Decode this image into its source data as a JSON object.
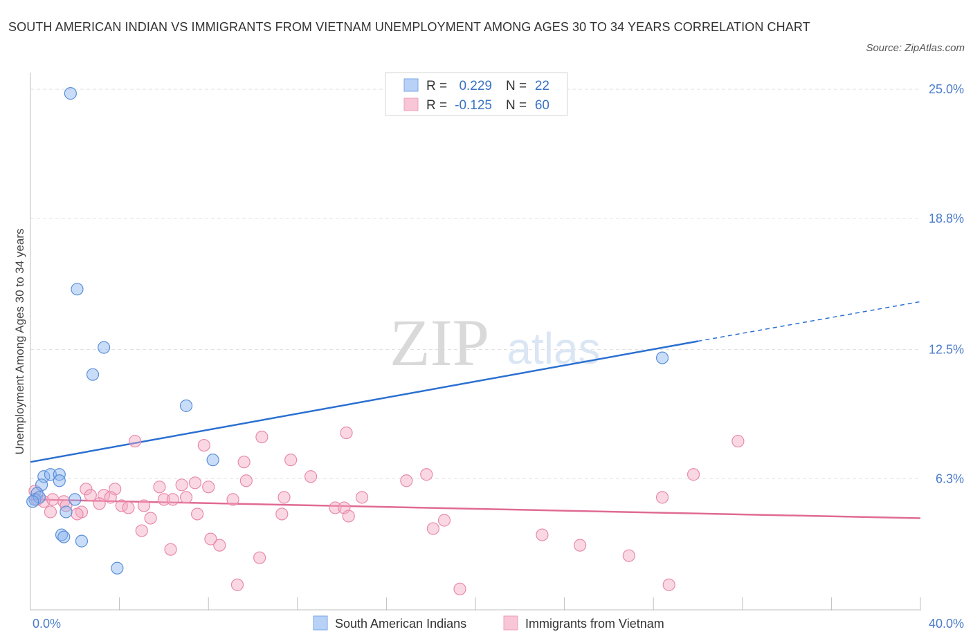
{
  "title": "SOUTH AMERICAN INDIAN VS IMMIGRANTS FROM VIETNAM UNEMPLOYMENT AMONG AGES 30 TO 34 YEARS CORRELATION CHART",
  "source": "Source: ZipAtlas.com",
  "watermark": {
    "zip": "ZIP",
    "atlas": "atlas"
  },
  "chart_data": {
    "type": "scatter",
    "xlabel": "",
    "ylabel": "Unemployment Among Ages 30 to 34 years",
    "xlim": [
      0,
      40
    ],
    "ylim": [
      0,
      25.8
    ],
    "x_tick_labels": [
      "0.0%",
      "40.0%"
    ],
    "y_ticks": [
      6.3,
      12.5,
      18.8,
      25.0
    ],
    "y_tick_labels": [
      "6.3%",
      "12.5%",
      "18.8%",
      "25.0%"
    ],
    "grid": true,
    "legend": {
      "entries": [
        {
          "r_label": "R =",
          "r_value": "0.229",
          "n_label": "N =",
          "n_value": "22"
        },
        {
          "r_label": "R =",
          "r_value": "-0.125",
          "n_label": "N =",
          "n_value": "60"
        }
      ]
    },
    "series": [
      {
        "name": "South American Indians",
        "color": "#8ab4f0",
        "line_color": "#2a6fd1",
        "trend": {
          "x0": 0,
          "y0": 7.1,
          "x1": 30,
          "y1": 12.9,
          "x_dash_end": 40,
          "y_dash_end": 14.8
        },
        "points": [
          [
            1.8,
            24.8
          ],
          [
            2.1,
            15.4
          ],
          [
            3.3,
            12.6
          ],
          [
            2.8,
            11.3
          ],
          [
            7.0,
            9.8
          ],
          [
            8.2,
            7.2
          ],
          [
            0.6,
            6.4
          ],
          [
            0.9,
            6.5
          ],
          [
            1.3,
            6.5
          ],
          [
            1.3,
            6.2
          ],
          [
            0.5,
            6.0
          ],
          [
            0.3,
            5.6
          ],
          [
            0.2,
            5.3
          ],
          [
            0.4,
            5.4
          ],
          [
            2.0,
            5.3
          ],
          [
            1.6,
            4.7
          ],
          [
            1.4,
            3.6
          ],
          [
            1.5,
            3.5
          ],
          [
            2.3,
            3.3
          ],
          [
            3.9,
            2.0
          ],
          [
            28.4,
            12.1
          ],
          [
            0.1,
            5.2
          ]
        ]
      },
      {
        "name": "Immigrants from Vietnam",
        "color": "#f4a8c0",
        "line_color": "#e06a94",
        "trend": {
          "x0": 0,
          "y0": 5.3,
          "x1": 40,
          "y1": 4.4
        },
        "points": [
          [
            4.7,
            8.1
          ],
          [
            7.8,
            7.9
          ],
          [
            10.4,
            8.3
          ],
          [
            14.2,
            8.5
          ],
          [
            31.8,
            8.1
          ],
          [
            9.6,
            7.1
          ],
          [
            11.7,
            7.2
          ],
          [
            12.6,
            6.4
          ],
          [
            17.8,
            6.5
          ],
          [
            29.8,
            6.5
          ],
          [
            9.7,
            6.2
          ],
          [
            16.9,
            6.2
          ],
          [
            6.8,
            6.0
          ],
          [
            7.4,
            6.1
          ],
          [
            5.8,
            5.9
          ],
          [
            8.0,
            5.9
          ],
          [
            2.5,
            5.8
          ],
          [
            3.8,
            5.8
          ],
          [
            2.7,
            5.5
          ],
          [
            3.3,
            5.5
          ],
          [
            3.6,
            5.4
          ],
          [
            6.0,
            5.3
          ],
          [
            6.4,
            5.3
          ],
          [
            7.0,
            5.4
          ],
          [
            9.1,
            5.3
          ],
          [
            11.4,
            5.4
          ],
          [
            14.9,
            5.4
          ],
          [
            0.3,
            5.3
          ],
          [
            0.6,
            5.2
          ],
          [
            1.5,
            5.2
          ],
          [
            1.6,
            5.0
          ],
          [
            3.1,
            5.1
          ],
          [
            4.1,
            5.0
          ],
          [
            5.1,
            5.0
          ],
          [
            4.4,
            4.9
          ],
          [
            13.7,
            4.9
          ],
          [
            14.1,
            4.9
          ],
          [
            0.9,
            4.7
          ],
          [
            2.3,
            4.7
          ],
          [
            2.1,
            4.6
          ],
          [
            7.5,
            4.6
          ],
          [
            11.3,
            4.6
          ],
          [
            14.3,
            4.5
          ],
          [
            5.4,
            4.4
          ],
          [
            18.6,
            4.3
          ],
          [
            5.0,
            3.8
          ],
          [
            18.1,
            3.9
          ],
          [
            23.0,
            3.6
          ],
          [
            8.1,
            3.4
          ],
          [
            8.5,
            3.1
          ],
          [
            24.7,
            3.1
          ],
          [
            6.3,
            2.9
          ],
          [
            10.3,
            2.5
          ],
          [
            26.9,
            2.6
          ],
          [
            9.3,
            1.2
          ],
          [
            19.3,
            1.0
          ],
          [
            28.7,
            1.2
          ],
          [
            28.4,
            5.4
          ],
          [
            0.2,
            5.7
          ],
          [
            1.0,
            5.3
          ]
        ]
      }
    ]
  }
}
